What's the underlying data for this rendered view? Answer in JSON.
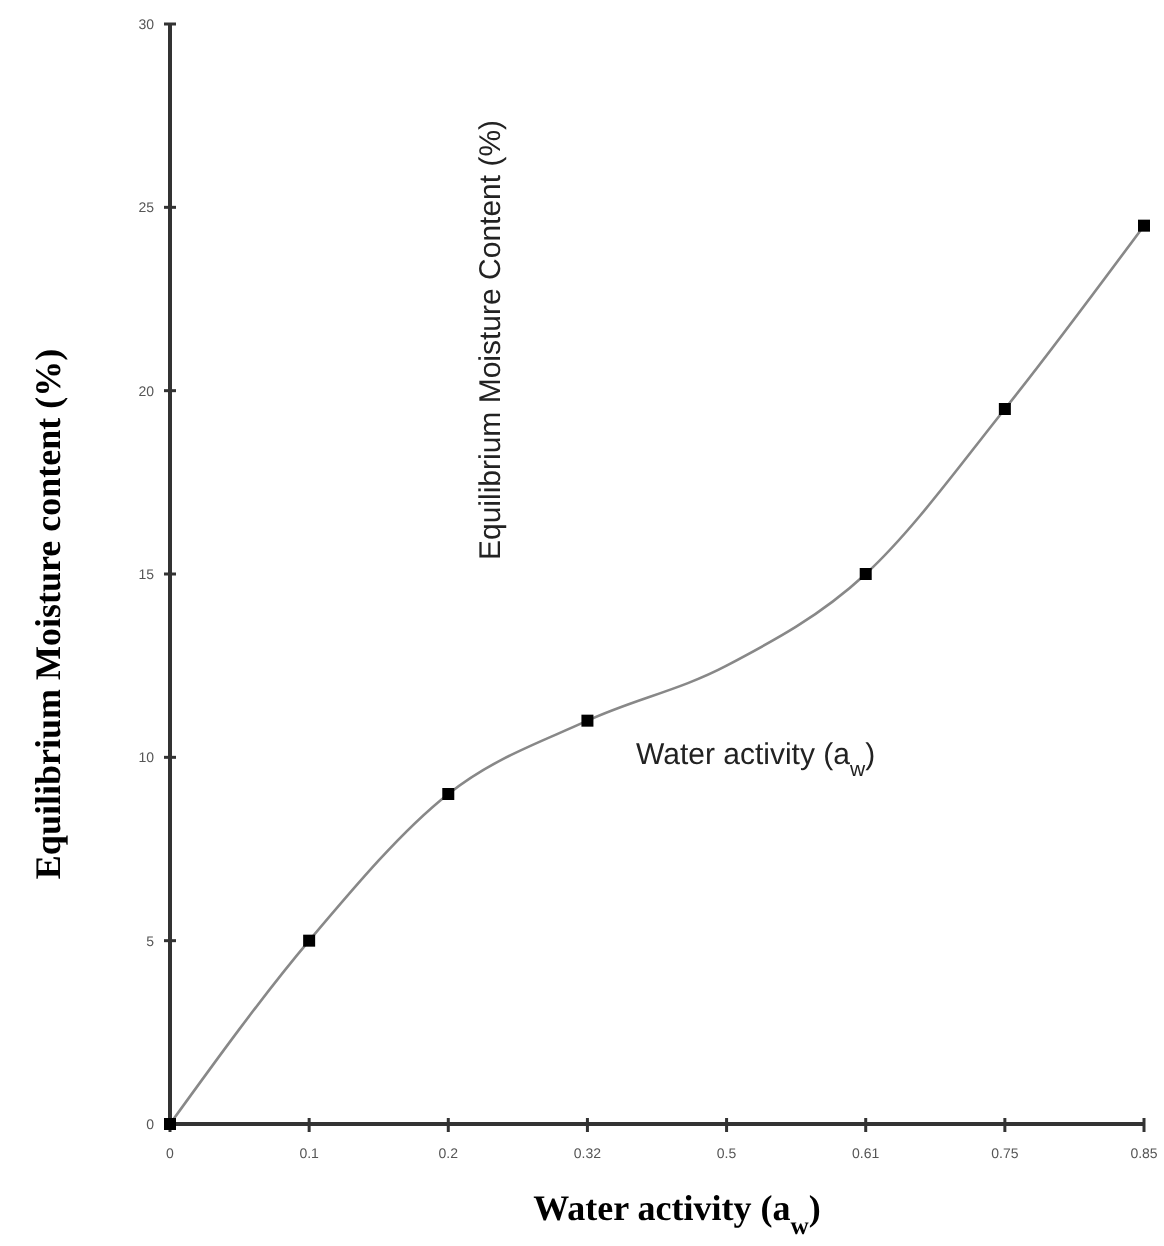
{
  "chart_data": {
    "type": "line",
    "xlabel": "Water activity (a$_{w}$)",
    "ylabel": "Equilibrium Moisture content (%)",
    "categories": [
      "0",
      "0.1",
      "0.2",
      "0.32",
      "0.5",
      "0.61",
      "0.75",
      "0.85"
    ],
    "series": [
      {
        "color": "#888888",
        "marker": "none",
        "values": [
          0,
          5,
          9,
          11,
          12.5,
          15,
          19.5,
          24.5
        ]
      },
      {
        "type": "scatter",
        "color": "#000000",
        "marker": "square",
        "x": [
          "0",
          "0.1",
          "0.2",
          "0.32",
          "0.61",
          "0.75",
          "0.85"
        ],
        "values": [
          0,
          5,
          9,
          11,
          15,
          19.5,
          24.5
        ]
      }
    ],
    "ylim": [
      0,
      30
    ],
    "yticks": [
      0,
      5,
      10,
      15,
      20,
      25,
      30
    ],
    "grid": false,
    "annotations": [
      "Equilibrium Moisture Content (%)",
      "Water activity (a$_{w}$)"
    ]
  }
}
